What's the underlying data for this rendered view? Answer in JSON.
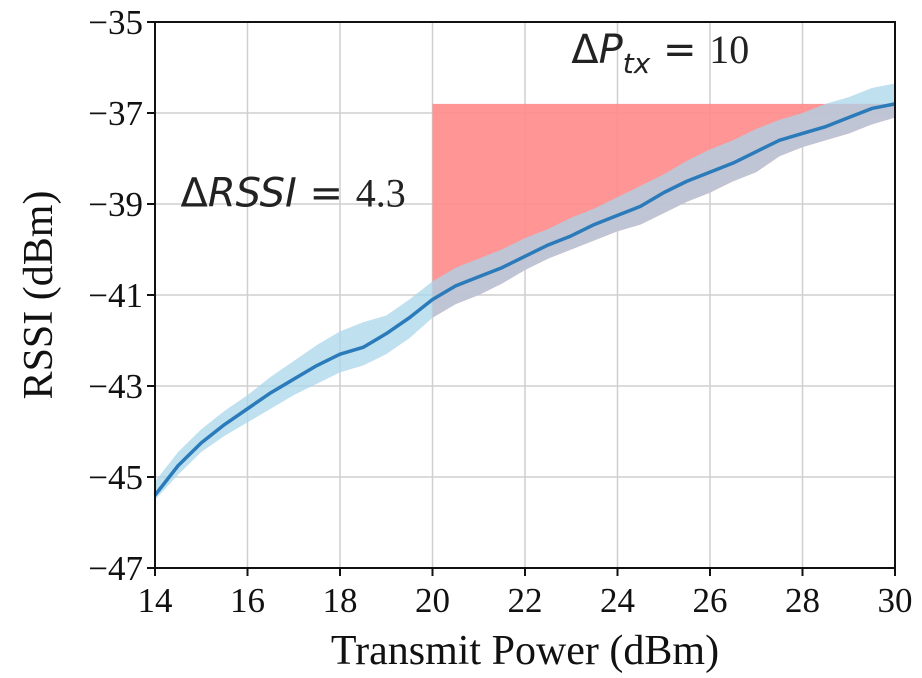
{
  "chart_data": {
    "type": "line",
    "title": "",
    "xlabel": "Transmit Power (dBm)",
    "ylabel": "RSSI (dBm)",
    "xlim": [
      14,
      30
    ],
    "ylim": [
      -47,
      -35
    ],
    "xticks": [
      14,
      16,
      18,
      20,
      22,
      24,
      26,
      28,
      30
    ],
    "yticks": [
      -47,
      -45,
      -43,
      -41,
      -39,
      -37,
      -35
    ],
    "xtick_labels": [
      "14",
      "16",
      "18",
      "20",
      "22",
      "24",
      "26",
      "28",
      "30"
    ],
    "ytick_labels": [
      "−47",
      "−45",
      "−43",
      "−41",
      "−39",
      "−37",
      "−35"
    ],
    "grid": true,
    "series": [
      {
        "color": "#2b7bba",
        "band_color": "#a9d6ea",
        "x": [
          14,
          14.5,
          15,
          15.5,
          16,
          16.5,
          17,
          17.5,
          18,
          18.5,
          19,
          19.5,
          20,
          20.5,
          21,
          21.5,
          22,
          22.5,
          23,
          23.5,
          24,
          24.5,
          25,
          25.5,
          26,
          26.5,
          27,
          27.5,
          28,
          28.5,
          29,
          29.5,
          30
        ],
        "y": [
          -45.4,
          -44.75,
          -44.25,
          -43.85,
          -43.5,
          -43.15,
          -42.85,
          -42.55,
          -42.3,
          -42.15,
          -41.85,
          -41.5,
          -41.1,
          -40.8,
          -40.6,
          -40.4,
          -40.15,
          -39.9,
          -39.7,
          -39.45,
          -39.25,
          -39.05,
          -38.75,
          -38.5,
          -38.3,
          -38.1,
          -37.85,
          -37.6,
          -37.45,
          -37.3,
          -37.1,
          -36.9,
          -36.8
        ],
        "lower": [
          -45.5,
          -44.95,
          -44.45,
          -44.1,
          -43.8,
          -43.5,
          -43.2,
          -42.95,
          -42.7,
          -42.55,
          -42.3,
          -41.95,
          -41.5,
          -41.2,
          -41.0,
          -40.75,
          -40.45,
          -40.2,
          -40.0,
          -39.8,
          -39.6,
          -39.45,
          -39.2,
          -38.95,
          -38.75,
          -38.5,
          -38.3,
          -37.95,
          -37.75,
          -37.6,
          -37.45,
          -37.25,
          -37.1
        ],
        "upper": [
          -45.1,
          -44.45,
          -43.95,
          -43.55,
          -43.2,
          -42.8,
          -42.45,
          -42.1,
          -41.8,
          -41.6,
          -41.45,
          -41.1,
          -40.7,
          -40.4,
          -40.2,
          -40.0,
          -39.75,
          -39.55,
          -39.3,
          -39.1,
          -38.85,
          -38.6,
          -38.35,
          -38.05,
          -37.8,
          -37.6,
          -37.35,
          -37.15,
          -37.0,
          -36.8,
          -36.65,
          -36.45,
          -36.35
        ]
      }
    ],
    "shaded_region": {
      "color": "#ff8a8a",
      "x_start": 20,
      "y_top": -36.8
    },
    "annotations": [
      {
        "symbol": "Δ",
        "var": "P",
        "sub": "tx",
        "eq": " = ",
        "value": "10",
        "x": 23,
        "y": -35.9
      },
      {
        "symbol": "Δ",
        "var": "RSSI",
        "eq": " = ",
        "value": "4.3",
        "x": 14.55,
        "y": -39.05
      }
    ]
  }
}
